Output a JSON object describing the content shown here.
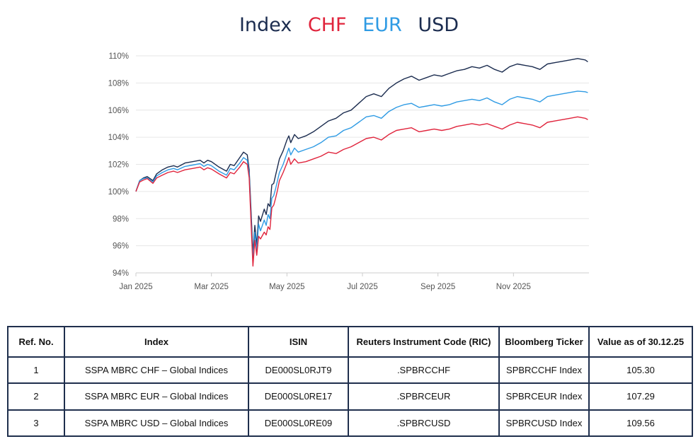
{
  "legend": [
    {
      "label": "Index",
      "color": "#1b2c4f"
    },
    {
      "label": "CHF",
      "color": "#e0243c"
    },
    {
      "label": "EUR",
      "color": "#2f9be4"
    },
    {
      "label": "USD",
      "color": "#1b2c4f"
    }
  ],
  "chart_data": {
    "type": "line",
    "title": "",
    "xlabel": "",
    "ylabel": "",
    "x_range": [
      "2025-01-01",
      "2025-12-30"
    ],
    "ylim": [
      94,
      110
    ],
    "x_tick_labels": [
      "Jan 2025",
      "Mar 2025",
      "May 2025",
      "Jul 2025",
      "Sep 2025",
      "Nov 2025"
    ],
    "x_tick_positions_month": [
      0,
      2,
      4,
      6,
      8,
      10
    ],
    "y_ticks": [
      94,
      96,
      98,
      100,
      102,
      104,
      106,
      108,
      110
    ],
    "y_tick_labels": [
      "94%",
      "96%",
      "98%",
      "100%",
      "102%",
      "104%",
      "106%",
      "108%",
      "110%"
    ],
    "grid": true,
    "series": [
      {
        "name": "USD",
        "color": "#1b2c4f",
        "x": [
          0,
          0.1,
          0.2,
          0.3,
          0.45,
          0.55,
          0.7,
          0.85,
          1.0,
          1.1,
          1.3,
          1.5,
          1.7,
          1.8,
          1.9,
          2.0,
          2.2,
          2.4,
          2.5,
          2.6,
          2.75,
          2.85,
          2.95,
          3.0,
          3.05,
          3.1,
          3.15,
          3.2,
          3.25,
          3.3,
          3.4,
          3.45,
          3.5,
          3.55,
          3.6,
          3.65,
          3.7,
          3.75,
          3.8,
          3.9,
          4.0,
          4.05,
          4.1,
          4.2,
          4.3,
          4.5,
          4.7,
          4.9,
          5.1,
          5.3,
          5.5,
          5.7,
          5.9,
          6.1,
          6.3,
          6.5,
          6.7,
          6.9,
          7.1,
          7.3,
          7.5,
          7.7,
          7.9,
          8.1,
          8.3,
          8.5,
          8.7,
          8.9,
          9.1,
          9.3,
          9.5,
          9.7,
          9.9,
          10.1,
          10.3,
          10.5,
          10.7,
          10.9,
          11.1,
          11.3,
          11.5,
          11.7,
          11.9,
          11.97
        ],
        "values": [
          100.0,
          100.8,
          101.0,
          101.1,
          100.8,
          101.3,
          101.6,
          101.8,
          101.9,
          101.8,
          102.1,
          102.2,
          102.3,
          102.1,
          102.3,
          102.2,
          101.8,
          101.5,
          102.0,
          101.9,
          102.5,
          102.9,
          102.7,
          101.6,
          98.5,
          95.4,
          97.5,
          96.0,
          98.2,
          97.8,
          98.7,
          98.3,
          99.1,
          98.9,
          100.5,
          100.6,
          101.2,
          101.8,
          102.4,
          103.0,
          103.8,
          104.1,
          103.6,
          104.2,
          103.9,
          104.1,
          104.4,
          104.8,
          105.2,
          105.4,
          105.8,
          106.0,
          106.5,
          107.0,
          107.2,
          107.0,
          107.6,
          108.0,
          108.3,
          108.5,
          108.2,
          108.4,
          108.6,
          108.5,
          108.7,
          108.9,
          109.0,
          109.2,
          109.1,
          109.3,
          109.0,
          108.8,
          109.2,
          109.4,
          109.3,
          109.2,
          109.0,
          109.4,
          109.5,
          109.6,
          109.7,
          109.8,
          109.7,
          109.56
        ]
      },
      {
        "name": "EUR",
        "color": "#2f9be4",
        "x": [
          0,
          0.1,
          0.2,
          0.3,
          0.45,
          0.55,
          0.7,
          0.85,
          1.0,
          1.1,
          1.3,
          1.5,
          1.7,
          1.8,
          1.9,
          2.0,
          2.2,
          2.4,
          2.5,
          2.6,
          2.75,
          2.85,
          2.95,
          3.0,
          3.05,
          3.1,
          3.15,
          3.2,
          3.25,
          3.3,
          3.4,
          3.45,
          3.5,
          3.55,
          3.6,
          3.65,
          3.7,
          3.75,
          3.8,
          3.9,
          4.0,
          4.05,
          4.1,
          4.2,
          4.3,
          4.5,
          4.7,
          4.9,
          5.1,
          5.3,
          5.5,
          5.7,
          5.9,
          6.1,
          6.3,
          6.5,
          6.7,
          6.9,
          7.1,
          7.3,
          7.5,
          7.7,
          7.9,
          8.1,
          8.3,
          8.5,
          8.7,
          8.9,
          9.1,
          9.3,
          9.5,
          9.7,
          9.9,
          10.1,
          10.3,
          10.5,
          10.7,
          10.9,
          11.1,
          11.3,
          11.5,
          11.7,
          11.9,
          11.97
        ],
        "values": [
          100.0,
          100.8,
          100.95,
          101.0,
          100.7,
          101.15,
          101.4,
          101.6,
          101.7,
          101.6,
          101.85,
          101.95,
          102.05,
          101.85,
          102.0,
          101.9,
          101.5,
          101.2,
          101.7,
          101.6,
          102.1,
          102.5,
          102.3,
          101.3,
          98.0,
          95.0,
          97.0,
          95.6,
          97.6,
          97.1,
          97.9,
          97.5,
          98.3,
          98.0,
          99.5,
          99.7,
          100.2,
          100.8,
          101.4,
          102.0,
          102.8,
          103.2,
          102.7,
          103.2,
          102.9,
          103.1,
          103.3,
          103.6,
          104.0,
          104.1,
          104.5,
          104.7,
          105.1,
          105.5,
          105.6,
          105.4,
          105.9,
          106.2,
          106.4,
          106.5,
          106.2,
          106.3,
          106.4,
          106.3,
          106.4,
          106.6,
          106.7,
          106.8,
          106.7,
          106.9,
          106.6,
          106.4,
          106.8,
          107.0,
          106.9,
          106.8,
          106.6,
          107.0,
          107.1,
          107.2,
          107.3,
          107.4,
          107.35,
          107.29
        ]
      },
      {
        "name": "CHF",
        "color": "#e0243c",
        "x": [
          0,
          0.1,
          0.2,
          0.3,
          0.45,
          0.55,
          0.7,
          0.85,
          1.0,
          1.1,
          1.3,
          1.5,
          1.7,
          1.8,
          1.9,
          2.0,
          2.2,
          2.4,
          2.5,
          2.6,
          2.75,
          2.85,
          2.95,
          3.0,
          3.05,
          3.1,
          3.15,
          3.2,
          3.25,
          3.3,
          3.4,
          3.45,
          3.5,
          3.55,
          3.6,
          3.65,
          3.7,
          3.75,
          3.8,
          3.9,
          4.0,
          4.05,
          4.1,
          4.2,
          4.3,
          4.5,
          4.7,
          4.9,
          5.1,
          5.3,
          5.5,
          5.7,
          5.9,
          6.1,
          6.3,
          6.5,
          6.7,
          6.9,
          7.1,
          7.3,
          7.5,
          7.7,
          7.9,
          8.1,
          8.3,
          8.5,
          8.7,
          8.9,
          9.1,
          9.3,
          9.5,
          9.7,
          9.9,
          10.1,
          10.3,
          10.5,
          10.7,
          10.9,
          11.1,
          11.3,
          11.5,
          11.7,
          11.9,
          11.97
        ],
        "values": [
          100.0,
          100.7,
          100.85,
          100.95,
          100.6,
          101.0,
          101.2,
          101.4,
          101.5,
          101.4,
          101.6,
          101.7,
          101.8,
          101.6,
          101.75,
          101.65,
          101.3,
          101.0,
          101.4,
          101.3,
          101.8,
          102.2,
          102.0,
          101.0,
          97.6,
          94.5,
          96.4,
          95.3,
          96.7,
          96.5,
          97.0,
          96.8,
          97.4,
          97.2,
          98.8,
          99.0,
          99.5,
          100.1,
          100.8,
          101.4,
          102.1,
          102.5,
          102.0,
          102.4,
          102.1,
          102.2,
          102.4,
          102.6,
          102.9,
          102.8,
          103.1,
          103.3,
          103.6,
          103.9,
          104.0,
          103.8,
          104.2,
          104.5,
          104.6,
          104.7,
          104.4,
          104.5,
          104.6,
          104.5,
          104.6,
          104.8,
          104.9,
          105.0,
          104.9,
          105.0,
          104.8,
          104.6,
          104.9,
          105.1,
          105.0,
          104.9,
          104.7,
          105.1,
          105.2,
          105.3,
          105.4,
          105.5,
          105.4,
          105.3
        ]
      }
    ]
  },
  "table": {
    "headers": [
      "Ref. No.",
      "Index",
      "ISIN",
      "Reuters Instrument Code (RIC)",
      "Bloomberg Ticker",
      "Value as of 30.12.25"
    ],
    "rows": [
      [
        "1",
        "SSPA MBRC CHF – Global Indices",
        "DE000SL0RJT9",
        ".SPBRCCHF",
        "SPBRCCHF Index",
        "105.30"
      ],
      [
        "2",
        "SSPA MBRC EUR – Global Indices",
        "DE000SL0RE17",
        ".SPBRCEUR",
        "SPBRCEUR Index",
        "107.29"
      ],
      [
        "3",
        "SSPA MBRC USD – Global Indices",
        "DE000SL0RE09",
        ".SPBRCUSD",
        "SPBRCUSD Index",
        "109.56"
      ]
    ]
  }
}
